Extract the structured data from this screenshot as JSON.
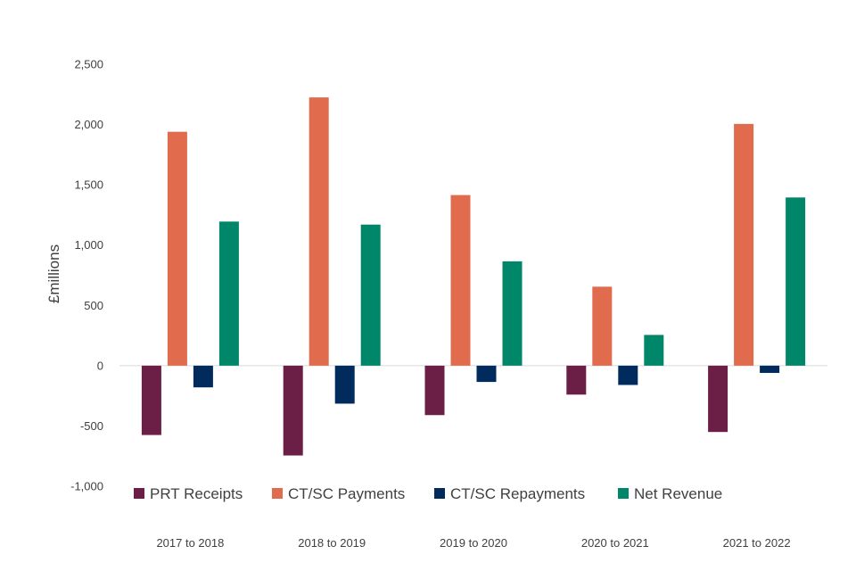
{
  "chart_data": {
    "type": "bar",
    "title": "",
    "xlabel": "",
    "ylabel": "£millions",
    "ylim": [
      -1000,
      2500
    ],
    "yticks": [
      2500,
      2000,
      1500,
      1000,
      500,
      0,
      -500,
      -1000
    ],
    "ytick_labels": [
      "2,500",
      "2,000",
      "1,500",
      "1,000",
      "500",
      "0",
      "-500",
      "-1,000"
    ],
    "categories": [
      "2017 to 2018",
      "2018 to 2019",
      "2019 to 2020",
      "2020 to 2021",
      "2021 to 2022"
    ],
    "series": [
      {
        "name": "PRT Receipts",
        "color": "#6b1f46",
        "values": [
          -575,
          -745,
          -410,
          -240,
          -550
        ]
      },
      {
        "name": "CT/SC Payments",
        "color": "#e06b4d",
        "values": [
          1940,
          2225,
          1415,
          655,
          2005
        ]
      },
      {
        "name": "CT/SC Repayments",
        "color": "#002b5c",
        "values": [
          -180,
          -315,
          -135,
          -160,
          -60
        ]
      },
      {
        "name": "Net Revenue",
        "color": "#00876a",
        "values": [
          1195,
          1170,
          865,
          255,
          1395
        ]
      }
    ],
    "grid": false,
    "legend": "bottom"
  }
}
